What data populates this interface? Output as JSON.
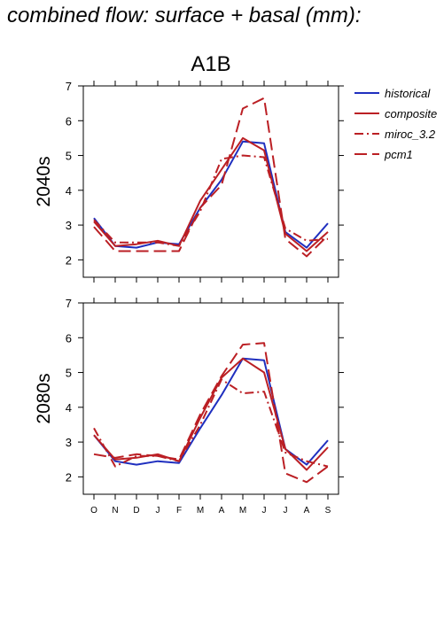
{
  "title": "combined flow: surface + basal (mm):",
  "chart_data": {
    "type": "line",
    "scenario": "A1B",
    "x": [
      "O",
      "N",
      "D",
      "J",
      "F",
      "M",
      "A",
      "M",
      "J",
      "J",
      "A",
      "S"
    ],
    "ylim": [
      1.5,
      7
    ],
    "yticks": [
      2,
      3,
      4,
      5,
      6,
      7
    ],
    "grid": false,
    "legend_position": "top-right, outside plot area",
    "styles": [
      {
        "name": "historical",
        "color": "#1f2fbf",
        "dash": "solid"
      },
      {
        "name": "composite",
        "color": "#bb1f24",
        "dash": "solid"
      },
      {
        "name": "miroc_3.2",
        "color": "#bb1f24",
        "dash": "dashdot"
      },
      {
        "name": "pcm1",
        "color": "#bb1f24",
        "dash": "longdash"
      }
    ],
    "panels": [
      {
        "label": "2040s",
        "series": [
          {
            "name": "historical",
            "values": [
              3.2,
              2.4,
              2.35,
              2.5,
              2.45,
              3.5,
              4.3,
              5.4,
              5.35,
              2.8,
              2.35,
              3.05
            ]
          },
          {
            "name": "composite",
            "values": [
              3.1,
              2.4,
              2.45,
              2.55,
              2.4,
              3.7,
              4.6,
              5.5,
              5.15,
              2.75,
              2.25,
              2.8
            ]
          },
          {
            "name": "miroc_3.2",
            "values": [
              3.15,
              2.5,
              2.5,
              2.5,
              2.4,
              3.4,
              4.9,
              5.0,
              4.95,
              2.9,
              2.55,
              2.6
            ]
          },
          {
            "name": "pcm1",
            "values": [
              2.95,
              2.25,
              2.25,
              2.25,
              2.25,
              3.5,
              4.15,
              6.35,
              6.65,
              2.6,
              2.1,
              2.7
            ]
          }
        ]
      },
      {
        "label": "2080s",
        "series": [
          {
            "name": "historical",
            "values": [
              3.2,
              2.45,
              2.35,
              2.45,
              2.4,
              3.4,
              4.35,
              5.4,
              5.35,
              2.8,
              2.35,
              3.05
            ]
          },
          {
            "name": "composite",
            "values": [
              3.2,
              2.5,
              2.55,
              2.65,
              2.45,
              3.7,
              4.85,
              5.4,
              5.0,
              2.8,
              2.2,
              2.85
            ]
          },
          {
            "name": "miroc_3.2",
            "values": [
              3.4,
              2.3,
              2.6,
              2.6,
              2.45,
              3.5,
              4.8,
              4.4,
              4.45,
              2.7,
              2.45,
              2.3
            ]
          },
          {
            "name": "pcm1",
            "values": [
              2.65,
              2.55,
              2.65,
              2.6,
              2.5,
              3.8,
              4.9,
              5.8,
              5.85,
              2.1,
              1.85,
              2.3
            ]
          }
        ]
      }
    ]
  }
}
